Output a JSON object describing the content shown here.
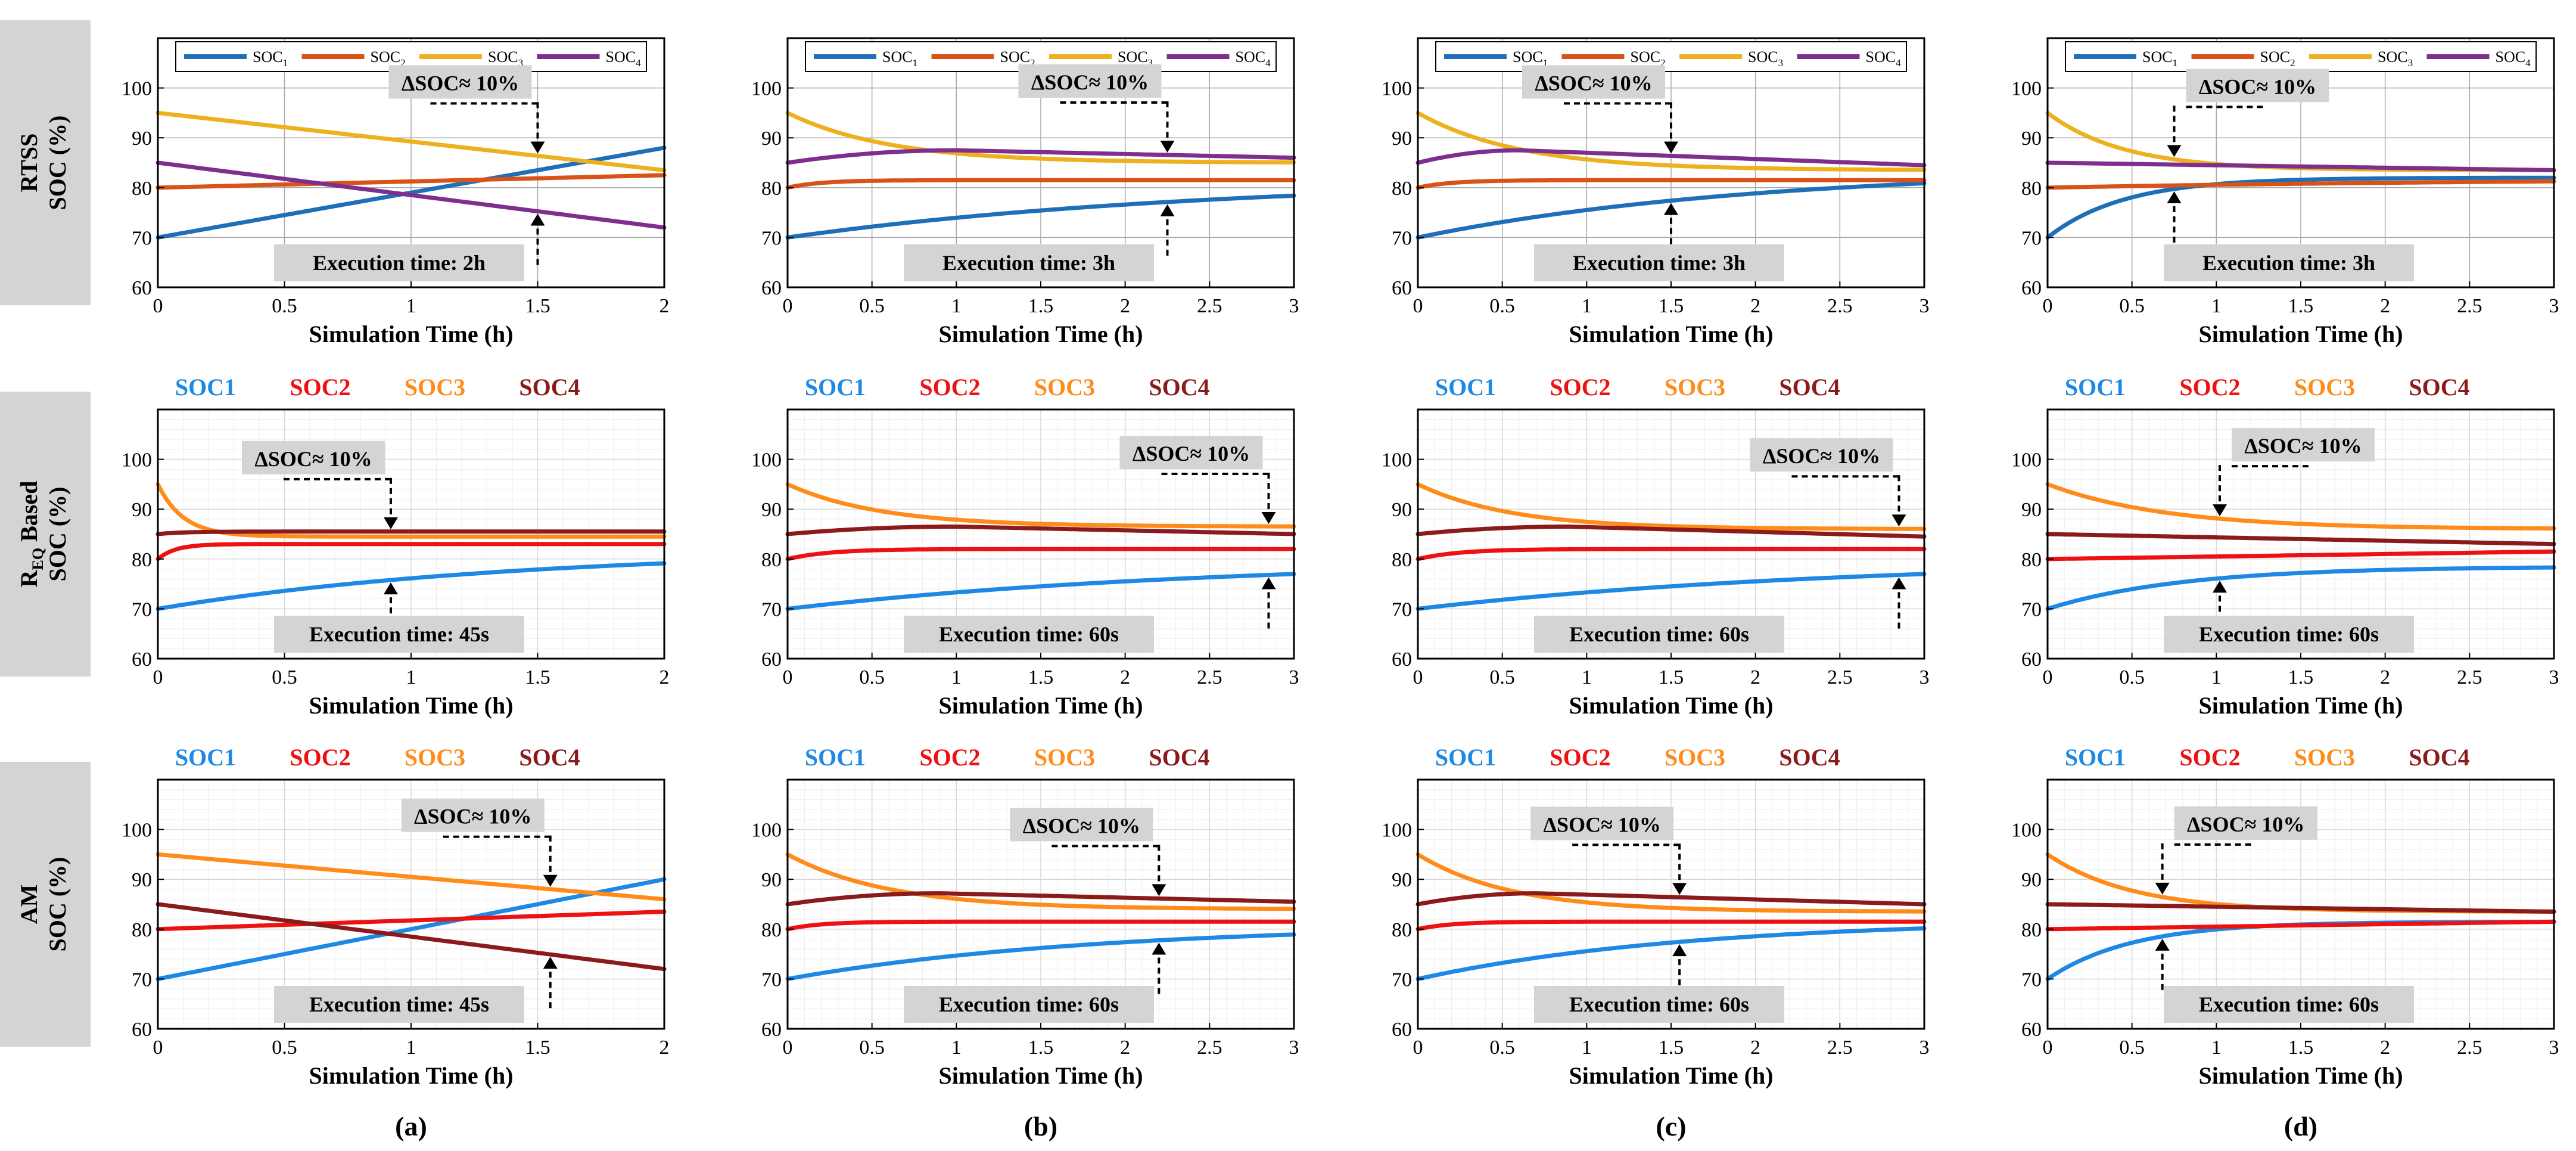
{
  "figure": {
    "row_labels": [
      [
        "RTSS",
        "SOC (%)"
      ],
      [
        "REQ Based",
        "SOC (%)"
      ],
      [
        "AM",
        "SOC (%)"
      ]
    ],
    "row_label_sub": "EQ",
    "column_labels": [
      "(a)",
      "(b)",
      "(c)",
      "(d)"
    ],
    "xlabel": "Simulation Time (h)",
    "ylim": [
      60,
      110
    ],
    "yticks": [
      "60",
      "70",
      "80",
      "90",
      "100"
    ],
    "xticks_2h": [
      "0",
      "0.5",
      "1",
      "1.5",
      "2"
    ],
    "xticks_3h": [
      "0",
      "0.5",
      "1",
      "1.5",
      "2",
      "2.5",
      "3"
    ],
    "delta_label": "ΔSOC≈ 10%",
    "legend_rtss": [
      "SOC1",
      "SOC2",
      "SOC3",
      "SOC4"
    ],
    "legend_rtss_sub": [
      "1",
      "2",
      "3",
      "4"
    ],
    "legend_text": [
      "SOC1",
      "SOC2",
      "SOC3",
      "SOC4"
    ],
    "colors_rtss": [
      "#1f6fb8",
      "#d95319",
      "#edb120",
      "#7e2f8e"
    ],
    "colors_other": [
      "#1e88e5",
      "#ee1111",
      "#ff8c1a",
      "#8b1a1a"
    ]
  },
  "chart_data": [
    {
      "row": 0,
      "col": 0,
      "type": "line",
      "style": "rtss",
      "xmax": 2,
      "exec": "Execution time: 2h",
      "marker_x": 1.5,
      "series": [
        {
          "name": "SOC1",
          "shape": "lin",
          "start": 70,
          "end": 88
        },
        {
          "name": "SOC2",
          "shape": "lin",
          "start": 80,
          "end": 82.5
        },
        {
          "name": "SOC3",
          "shape": "lin",
          "start": 95,
          "end": 83.5
        },
        {
          "name": "SOC4",
          "shape": "lin",
          "start": 85,
          "end": 72
        }
      ]
    },
    {
      "row": 0,
      "col": 1,
      "type": "line",
      "style": "rtss",
      "xmax": 3,
      "exec": "Execution time: 3h",
      "marker_x": 2.25,
      "series": [
        {
          "name": "SOC1",
          "shape": "exp",
          "start": 70,
          "end": 82,
          "tau": 2.5
        },
        {
          "name": "SOC2",
          "shape": "exp",
          "start": 80,
          "end": 81.5,
          "tau": 0.2
        },
        {
          "name": "SOC3",
          "shape": "exp",
          "start": 95,
          "end": 85,
          "tau": 0.6
        },
        {
          "name": "SOC4",
          "shape": "bump",
          "start": 85,
          "end": 86,
          "peak": 87.5,
          "tp": 1.0
        }
      ]
    },
    {
      "row": 0,
      "col": 2,
      "type": "line",
      "style": "rtss",
      "xmax": 3,
      "exec": "Execution time: 3h",
      "marker_x": 1.5,
      "series": [
        {
          "name": "SOC1",
          "shape": "exp",
          "start": 70,
          "end": 84,
          "tau": 2.0
        },
        {
          "name": "SOC2",
          "shape": "exp",
          "start": 80,
          "end": 81.5,
          "tau": 0.2
        },
        {
          "name": "SOC3",
          "shape": "exp",
          "start": 95,
          "end": 83.5,
          "tau": 0.6
        },
        {
          "name": "SOC4",
          "shape": "bump",
          "start": 85,
          "end": 84.5,
          "peak": 87.5,
          "tp": 0.6
        }
      ]
    },
    {
      "row": 0,
      "col": 3,
      "type": "line",
      "style": "rtss",
      "xmax": 3,
      "exec": "Execution time: 3h",
      "marker_x": 0.75,
      "series": [
        {
          "name": "SOC1",
          "shape": "exp",
          "start": 70,
          "end": 82,
          "tau": 0.45
        },
        {
          "name": "SOC2",
          "shape": "exp",
          "start": 80,
          "end": 82,
          "tau": 3
        },
        {
          "name": "SOC3",
          "shape": "exp",
          "start": 95,
          "end": 83.5,
          "tau": 0.45
        },
        {
          "name": "SOC4",
          "shape": "lin",
          "start": 85,
          "end": 83.5
        }
      ]
    },
    {
      "row": 1,
      "col": 0,
      "type": "line",
      "style": "other",
      "xmax": 2,
      "exec": "Execution time: 45s",
      "marker_x": 0.92,
      "series": [
        {
          "name": "SOC1",
          "shape": "exp",
          "start": 70,
          "end": 82,
          "tau": 1.4
        },
        {
          "name": "SOC2",
          "shape": "exp",
          "start": 80,
          "end": 83,
          "tau": 0.07
        },
        {
          "name": "SOC3",
          "shape": "exp",
          "start": 95,
          "end": 84.5,
          "tau": 0.1
        },
        {
          "name": "SOC4",
          "shape": "exp",
          "start": 85,
          "end": 85.5,
          "tau": 0.1
        }
      ]
    },
    {
      "row": 1,
      "col": 1,
      "type": "line",
      "style": "other",
      "xmax": 3,
      "exec": "Execution time: 60s",
      "marker_x": 2.85,
      "series": [
        {
          "name": "SOC1",
          "shape": "exp",
          "start": 70,
          "end": 80,
          "tau": 2.5
        },
        {
          "name": "SOC2",
          "shape": "exp",
          "start": 80,
          "end": 82,
          "tau": 0.25
        },
        {
          "name": "SOC3",
          "shape": "exp",
          "start": 95,
          "end": 86.5,
          "tau": 0.55
        },
        {
          "name": "SOC4",
          "shape": "bump",
          "start": 85,
          "end": 85,
          "peak": 86.5,
          "tp": 1.0
        }
      ]
    },
    {
      "row": 1,
      "col": 2,
      "type": "line",
      "style": "other",
      "xmax": 3,
      "exec": "Execution time: 60s",
      "marker_x": 2.85,
      "series": [
        {
          "name": "SOC1",
          "shape": "exp",
          "start": 70,
          "end": 80,
          "tau": 2.5
        },
        {
          "name": "SOC2",
          "shape": "exp",
          "start": 80,
          "end": 82,
          "tau": 0.25
        },
        {
          "name": "SOC3",
          "shape": "exp",
          "start": 95,
          "end": 86,
          "tau": 0.55
        },
        {
          "name": "SOC4",
          "shape": "bump",
          "start": 85,
          "end": 84.5,
          "peak": 86.5,
          "tp": 0.9
        }
      ]
    },
    {
      "row": 1,
      "col": 3,
      "type": "line",
      "style": "other",
      "xmax": 3,
      "exec": "Execution time: 60s",
      "marker_x": 1.02,
      "series": [
        {
          "name": "SOC1",
          "shape": "exp",
          "start": 70,
          "end": 78.5,
          "tau": 0.8
        },
        {
          "name": "SOC2",
          "shape": "lin",
          "start": 80,
          "end": 81.5
        },
        {
          "name": "SOC3",
          "shape": "exp",
          "start": 95,
          "end": 86,
          "tau": 0.7
        },
        {
          "name": "SOC4",
          "shape": "lin",
          "start": 85,
          "end": 83
        }
      ]
    },
    {
      "row": 2,
      "col": 0,
      "type": "line",
      "style": "other",
      "xmax": 2,
      "exec": "Execution time: 45s",
      "marker_x": 1.55,
      "series": [
        {
          "name": "SOC1",
          "shape": "lin",
          "start": 70,
          "end": 90
        },
        {
          "name": "SOC2",
          "shape": "lin",
          "start": 80,
          "end": 83.5
        },
        {
          "name": "SOC3",
          "shape": "lin",
          "start": 95,
          "end": 86
        },
        {
          "name": "SOC4",
          "shape": "lin",
          "start": 85,
          "end": 72
        }
      ]
    },
    {
      "row": 2,
      "col": 1,
      "type": "line",
      "style": "other",
      "xmax": 3,
      "exec": "Execution time: 60s",
      "marker_x": 2.2,
      "series": [
        {
          "name": "SOC1",
          "shape": "exp",
          "start": 70,
          "end": 81,
          "tau": 1.8
        },
        {
          "name": "SOC2",
          "shape": "exp",
          "start": 80,
          "end": 81.5,
          "tau": 0.2
        },
        {
          "name": "SOC3",
          "shape": "exp",
          "start": 95,
          "end": 84,
          "tau": 0.6
        },
        {
          "name": "SOC4",
          "shape": "bump",
          "start": 85,
          "end": 85.5,
          "peak": 87.2,
          "tp": 0.9
        }
      ]
    },
    {
      "row": 2,
      "col": 2,
      "type": "line",
      "style": "other",
      "xmax": 3,
      "exec": "Execution time: 60s",
      "marker_x": 1.55,
      "series": [
        {
          "name": "SOC1",
          "shape": "exp",
          "start": 70,
          "end": 82,
          "tau": 1.6
        },
        {
          "name": "SOC2",
          "shape": "exp",
          "start": 80,
          "end": 81.5,
          "tau": 0.2
        },
        {
          "name": "SOC3",
          "shape": "exp",
          "start": 95,
          "end": 83.5,
          "tau": 0.55
        },
        {
          "name": "SOC4",
          "shape": "bump",
          "start": 85,
          "end": 85,
          "peak": 87.2,
          "tp": 0.7
        }
      ]
    },
    {
      "row": 2,
      "col": 3,
      "type": "line",
      "style": "other",
      "xmax": 3,
      "exec": "Execution time: 60s",
      "marker_x": 0.68,
      "series": [
        {
          "name": "SOC1",
          "shape": "exp",
          "start": 70,
          "end": 81.5,
          "tau": 0.5
        },
        {
          "name": "SOC2",
          "shape": "lin",
          "start": 80,
          "end": 81.5
        },
        {
          "name": "SOC3",
          "shape": "exp",
          "start": 95,
          "end": 83.5,
          "tau": 0.5
        },
        {
          "name": "SOC4",
          "shape": "lin",
          "start": 85,
          "end": 83.5
        }
      ]
    }
  ]
}
